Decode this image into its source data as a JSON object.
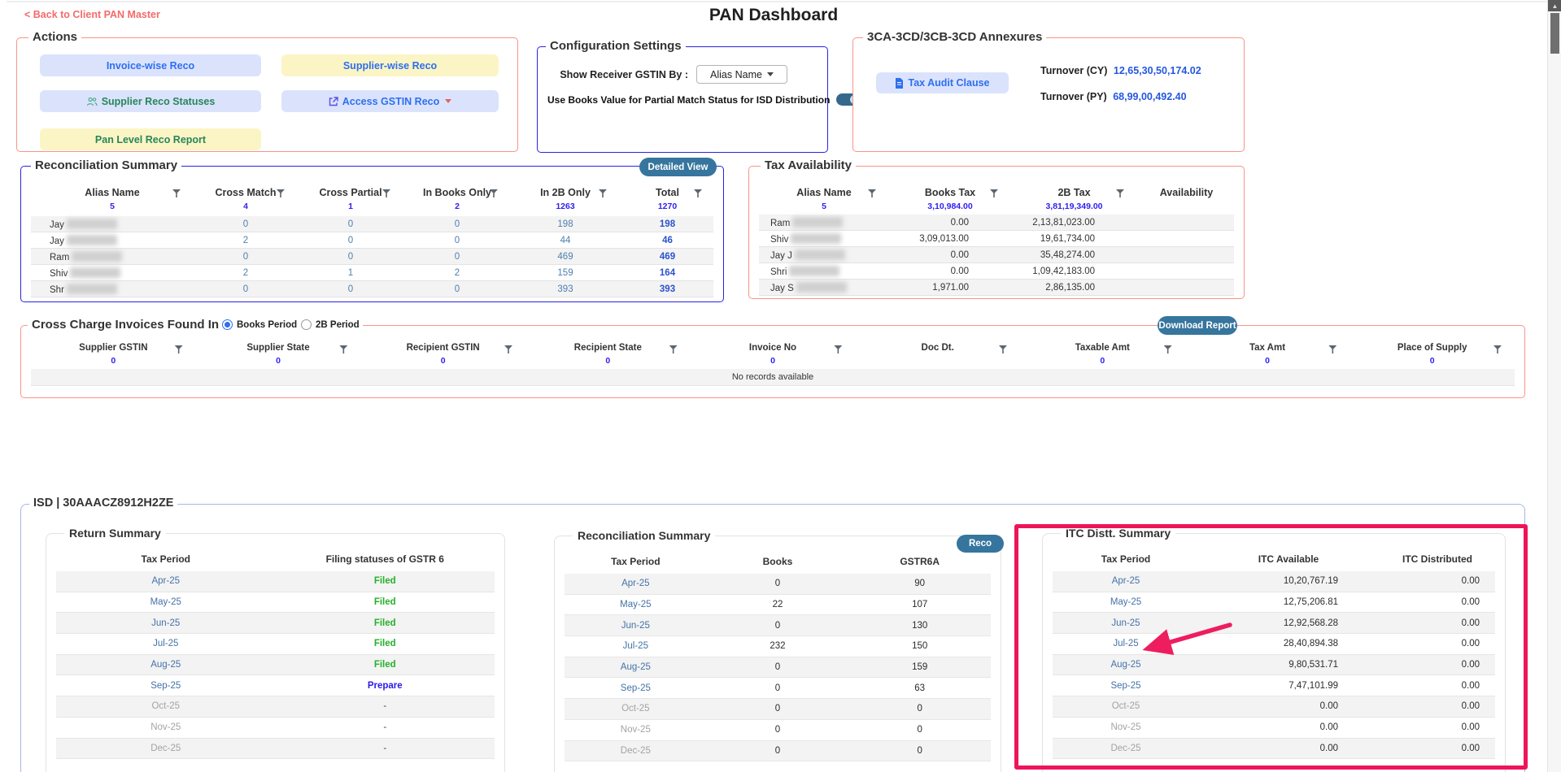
{
  "header": {
    "back_link": "< Back to Client PAN Master",
    "title": "PAN Dashboard"
  },
  "actions": {
    "legend": "Actions",
    "invoice_wise": "Invoice-wise Reco",
    "supplier_wise": "Supplier-wise Reco",
    "supplier_statuses": "Supplier Reco Statuses",
    "access_gstin": "Access GSTIN Reco",
    "pan_level": "Pan Level Reco Report"
  },
  "config": {
    "legend": "Configuration Settings",
    "receiver_label": "Show Receiver GSTIN By :",
    "receiver_value": "Alias Name",
    "toggle_label": "Use Books Value for Partial Match Status for ISD Distribution",
    "toggle_on": true
  },
  "annexures": {
    "legend": "3CA-3CD/3CB-3CD Annexures",
    "tax_audit_button": "Tax Audit Clause",
    "turnover_cy_label": "Turnover (CY)",
    "turnover_cy_value": "12,65,30,50,174.02",
    "turnover_py_label": "Turnover (PY)",
    "turnover_py_value": "68,99,00,492.40"
  },
  "recon_summary": {
    "legend": "Reconciliation Summary",
    "detailed_view_button": "Detailed View",
    "columns": [
      {
        "label": "Alias Name",
        "total": "5",
        "filter": true
      },
      {
        "label": "Cross Match",
        "total": "4",
        "filter": true
      },
      {
        "label": "Cross Partial",
        "total": "1",
        "filter": true
      },
      {
        "label": "In Books Only",
        "total": "2",
        "filter": true
      },
      {
        "label": "In 2B Only",
        "total": "1263",
        "filter": true
      },
      {
        "label": "Total",
        "total": "1270",
        "filter": true
      }
    ],
    "rows": [
      {
        "name": "Jay",
        "values": [
          "0",
          "0",
          "0",
          "198",
          "198"
        ]
      },
      {
        "name": "Jay",
        "values": [
          "2",
          "0",
          "0",
          "44",
          "46"
        ]
      },
      {
        "name": "Ram",
        "values": [
          "0",
          "0",
          "0",
          "469",
          "469"
        ]
      },
      {
        "name": "Shiv",
        "values": [
          "2",
          "1",
          "2",
          "159",
          "164"
        ]
      },
      {
        "name": "Shr",
        "values": [
          "0",
          "0",
          "0",
          "393",
          "393"
        ]
      }
    ]
  },
  "tax_availability": {
    "legend": "Tax Availability",
    "columns": [
      {
        "label": "Alias Name",
        "total": "5",
        "filter": true
      },
      {
        "label": "Books Tax",
        "total": "3,10,984.00",
        "filter": true
      },
      {
        "label": "2B Tax",
        "total": "3,81,19,349.00",
        "filter": true
      },
      {
        "label": "Availability",
        "total": "",
        "filter": false
      }
    ],
    "rows": [
      {
        "name": "Ram",
        "books_tax": "0.00",
        "tax_2b": "2,13,81,023.00",
        "availability": ""
      },
      {
        "name": "Shiv",
        "books_tax": "3,09,013.00",
        "tax_2b": "19,61,734.00",
        "availability": ""
      },
      {
        "name": "Jay J",
        "books_tax": "0.00",
        "tax_2b": "35,48,274.00",
        "availability": ""
      },
      {
        "name": "Shri",
        "books_tax": "0.00",
        "tax_2b": "1,09,42,183.00",
        "availability": ""
      },
      {
        "name": "Jay S",
        "books_tax": "1,971.00",
        "tax_2b": "2,86,135.00",
        "availability": ""
      }
    ]
  },
  "cross_charge": {
    "legend": "Cross Charge Invoices Found In Reco",
    "radio_books": "Books Period",
    "radio_2b": "2B Period",
    "books_period_selected": true,
    "download_button": "Download Report",
    "columns": [
      {
        "label": "Supplier GSTIN",
        "total": "0",
        "filter": true
      },
      {
        "label": "Supplier State",
        "total": "0",
        "filter": true
      },
      {
        "label": "Recipient GSTIN",
        "total": "0",
        "filter": true
      },
      {
        "label": "Recipient State",
        "total": "0",
        "filter": true
      },
      {
        "label": "Invoice No",
        "total": "0",
        "filter": true
      },
      {
        "label": "Doc Dt.",
        "total": "",
        "filter": true
      },
      {
        "label": "Taxable Amt",
        "total": "0",
        "filter": true
      },
      {
        "label": "Tax Amt",
        "total": "0",
        "filter": true
      },
      {
        "label": "Place of Supply",
        "total": "0",
        "filter": true
      }
    ],
    "empty_text": "No records available"
  },
  "isd": {
    "legend": "ISD | 30AAACZ8912H2ZE",
    "return_summary": {
      "title": "Return Summary",
      "columns": [
        "Tax Period",
        "Filing statuses of GSTR 6"
      ],
      "rows": [
        {
          "period": "Apr-25",
          "status": "Filed",
          "disabled": false
        },
        {
          "period": "May-25",
          "status": "Filed",
          "disabled": false
        },
        {
          "period": "Jun-25",
          "status": "Filed",
          "disabled": false
        },
        {
          "period": "Jul-25",
          "status": "Filed",
          "disabled": false
        },
        {
          "period": "Aug-25",
          "status": "Filed",
          "disabled": false
        },
        {
          "period": "Sep-25",
          "status": "Prepare",
          "disabled": false
        },
        {
          "period": "Oct-25",
          "status": "-",
          "disabled": true
        },
        {
          "period": "Nov-25",
          "status": "-",
          "disabled": true
        },
        {
          "period": "Dec-25",
          "status": "-",
          "disabled": true
        }
      ]
    },
    "recon": {
      "title": "Reconciliation Summary",
      "reco_button": "Reco",
      "columns": [
        "Tax Period",
        "Books",
        "GSTR6A"
      ],
      "rows": [
        {
          "period": "Apr-25",
          "books": "0",
          "gstr6a": "90",
          "disabled": false
        },
        {
          "period": "May-25",
          "books": "22",
          "gstr6a": "107",
          "disabled": false
        },
        {
          "period": "Jun-25",
          "books": "0",
          "gstr6a": "130",
          "disabled": false
        },
        {
          "period": "Jul-25",
          "books": "232",
          "gstr6a": "150",
          "disabled": false
        },
        {
          "period": "Aug-25",
          "books": "0",
          "gstr6a": "159",
          "disabled": false
        },
        {
          "period": "Sep-25",
          "books": "0",
          "gstr6a": "63",
          "disabled": false
        },
        {
          "period": "Oct-25",
          "books": "0",
          "gstr6a": "0",
          "disabled": true
        },
        {
          "period": "Nov-25",
          "books": "0",
          "gstr6a": "0",
          "disabled": true
        },
        {
          "period": "Dec-25",
          "books": "0",
          "gstr6a": "0",
          "disabled": true
        }
      ]
    },
    "itc": {
      "title": "ITC Distt. Summary",
      "columns": [
        "Tax Period",
        "ITC Available",
        "ITC Distributed"
      ],
      "rows": [
        {
          "period": "Apr-25",
          "available": "10,20,767.19",
          "distributed": "0.00",
          "disabled": false
        },
        {
          "period": "May-25",
          "available": "12,75,206.81",
          "distributed": "0.00",
          "disabled": false
        },
        {
          "period": "Jun-25",
          "available": "12,92,568.28",
          "distributed": "0.00",
          "disabled": false
        },
        {
          "period": "Jul-25",
          "available": "28,40,894.38",
          "distributed": "0.00",
          "disabled": false
        },
        {
          "period": "Aug-25",
          "available": "9,80,531.71",
          "distributed": "0.00",
          "disabled": false
        },
        {
          "period": "Sep-25",
          "available": "7,47,101.99",
          "distributed": "0.00",
          "disabled": false
        },
        {
          "period": "Oct-25",
          "available": "0.00",
          "distributed": "0.00",
          "disabled": true
        },
        {
          "period": "Nov-25",
          "available": "0.00",
          "distributed": "0.00",
          "disabled": true
        },
        {
          "period": "Dec-25",
          "available": "0.00",
          "distributed": "0.00",
          "disabled": true
        }
      ]
    }
  },
  "colors": {
    "panel_border_red": "#f99488",
    "panel_border_blue": "#2a23e0",
    "teal_button": "#36759d",
    "highlight_pink": "#ed1559",
    "link_blue": "#2457e0",
    "total_blue": "#2a1ae8",
    "filed_green": "#25b02a",
    "back_link_red": "#f56a6a"
  }
}
